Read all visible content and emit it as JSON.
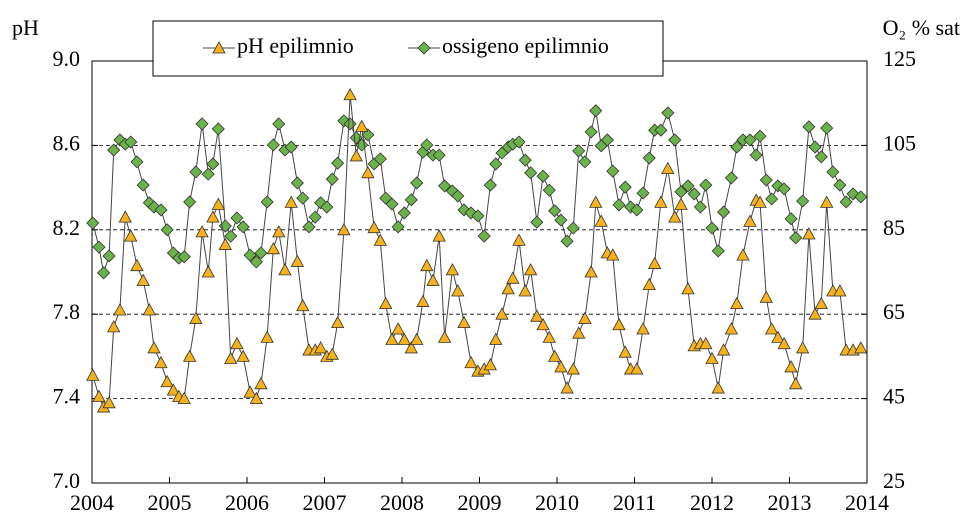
{
  "chart_data": {
    "type": "line",
    "y_label": "pH",
    "y2_label": "O₂ % sat",
    "x": [
      2004.01,
      2004.09,
      2004.15,
      2004.22,
      2004.28,
      2004.36,
      2004.43,
      2004.5,
      2004.58,
      2004.66,
      2004.74,
      2004.8,
      2004.89,
      2004.97,
      2005.05,
      2005.12,
      2005.19,
      2005.26,
      2005.34,
      2005.42,
      2005.5,
      2005.56,
      2005.63,
      2005.72,
      2005.79,
      2005.87,
      2005.95,
      2006.04,
      2006.12,
      2006.18,
      2006.26,
      2006.34,
      2006.41,
      2006.49,
      2006.57,
      2006.65,
      2006.72,
      2006.8,
      2006.88,
      2006.95,
      2007.03,
      2007.1,
      2007.17,
      2007.25,
      2007.33,
      2007.41,
      2007.48,
      2007.56,
      2007.64,
      2007.72,
      2007.79,
      2007.87,
      2007.95,
      2008.03,
      2008.12,
      2008.19,
      2008.27,
      2008.32,
      2008.4,
      2008.48,
      2008.55,
      2008.65,
      2008.72,
      2008.8,
      2008.89,
      2008.98,
      2009.06,
      2009.14,
      2009.21,
      2009.29,
      2009.37,
      2009.43,
      2009.51,
      2009.59,
      2009.66,
      2009.74,
      2009.82,
      2009.9,
      2009.97,
      2010.05,
      2010.13,
      2010.21,
      2010.28,
      2010.36,
      2010.44,
      2010.5,
      2010.57,
      2010.65,
      2010.72,
      2010.8,
      2010.88,
      2010.95,
      2011.03,
      2011.11,
      2011.19,
      2011.26,
      2011.34,
      2011.43,
      2011.52,
      2011.6,
      2011.69,
      2011.77,
      2011.85,
      2011.92,
      2012.0,
      2012.08,
      2012.15,
      2012.25,
      2012.32,
      2012.4,
      2012.49,
      2012.57,
      2012.62,
      2012.7,
      2012.77,
      2012.85,
      2012.93,
      2013.02,
      2013.08,
      2013.17,
      2013.25,
      2013.33,
      2013.41,
      2013.48,
      2013.56,
      2013.65,
      2013.73,
      2013.82,
      2013.92
    ],
    "series": [
      {
        "name": "pH epilimnio",
        "color": "#f5b21c",
        "marker": "triangle",
        "values": [
          7.51,
          7.41,
          7.36,
          7.38,
          7.74,
          7.82,
          8.26,
          8.17,
          8.03,
          7.96,
          7.82,
          7.64,
          7.57,
          7.48,
          7.44,
          7.41,
          7.4,
          7.6,
          7.78,
          8.19,
          8.0,
          8.26,
          8.32,
          8.13,
          7.59,
          7.66,
          7.6,
          7.43,
          7.4,
          7.47,
          7.69,
          8.11,
          8.19,
          8.01,
          8.33,
          8.05,
          7.84,
          7.63,
          7.63,
          7.64,
          7.6,
          7.61,
          7.76,
          8.2,
          8.84,
          8.55,
          8.69,
          8.47,
          8.21,
          8.15,
          7.85,
          7.68,
          7.73,
          7.68,
          7.64,
          7.68,
          7.86,
          8.03,
          7.96,
          8.17,
          7.69,
          8.01,
          7.91,
          7.76,
          7.57,
          7.53,
          7.54,
          7.56,
          7.68,
          7.8,
          7.92,
          7.97,
          8.15,
          7.91,
          8.01,
          7.79,
          7.75,
          7.69,
          7.6,
          7.55,
          7.45,
          7.54,
          7.71,
          7.78,
          8.0,
          8.33,
          8.24,
          8.09,
          8.08,
          7.75,
          7.62,
          7.54,
          7.54,
          7.73,
          7.94,
          8.04,
          8.33,
          8.49,
          8.26,
          8.32,
          7.92,
          7.65,
          7.66,
          7.66,
          7.59,
          7.45,
          7.63,
          7.73,
          7.85,
          8.08,
          8.24,
          8.34,
          8.33,
          7.88,
          7.73,
          7.69,
          7.66,
          7.55,
          7.47,
          7.64,
          8.18,
          7.8,
          7.85,
          8.33,
          7.91,
          7.91,
          7.63,
          7.63,
          7.64
        ]
      },
      {
        "name": "ossigeno epilimnio",
        "color": "#6bb24a",
        "marker": "diamond",
        "axis": "y2",
        "values": [
          86.6,
          80.9,
          74.8,
          78.8,
          103.9,
          106.3,
          105.3,
          105.8,
          101.1,
          95.6,
          91.4,
          90.4,
          89.7,
          85.0,
          79.5,
          78.3,
          78.6,
          91.6,
          98.7,
          110.1,
          98.2,
          100.6,
          108.9,
          85.9,
          83.5,
          87.8,
          85.7,
          79.0,
          77.4,
          79.5,
          91.6,
          105.1,
          110.1,
          103.9,
          104.6,
          96.1,
          92.5,
          85.7,
          88.0,
          91.4,
          90.4,
          97.0,
          100.8,
          110.8,
          110.1,
          106.8,
          105.1,
          107.5,
          100.6,
          101.8,
          92.5,
          91.1,
          85.7,
          89.0,
          92.1,
          96.1,
          103.4,
          105.1,
          102.7,
          102.7,
          95.4,
          94.2,
          93.0,
          89.7,
          89.0,
          88.3,
          83.5,
          95.6,
          100.6,
          103.2,
          104.6,
          105.3,
          105.8,
          101.5,
          98.5,
          86.8,
          97.7,
          94.4,
          89.5,
          87.3,
          82.3,
          85.4,
          103.7,
          101.1,
          108.2,
          113.2,
          104.9,
          106.3,
          98.9,
          90.9,
          95.1,
          90.4,
          89.7,
          93.7,
          102.0,
          108.6,
          108.6,
          112.7,
          106.3,
          94.0,
          95.4,
          93.5,
          90.4,
          95.6,
          85.4,
          80.0,
          89.2,
          97.3,
          104.6,
          106.3,
          106.3,
          102.7,
          107.2,
          96.8,
          92.3,
          95.4,
          94.7,
          87.6,
          83.1,
          91.8,
          109.4,
          104.6,
          102.3,
          109.1,
          98.7,
          95.6,
          91.6,
          93.5,
          92.8
        ]
      }
    ],
    "xlim": [
      2004,
      2014
    ],
    "xticks": [
      2004,
      2005,
      2006,
      2007,
      2008,
      2009,
      2010,
      2011,
      2012,
      2013,
      2014
    ],
    "ylim": [
      7,
      9
    ],
    "yticks": [
      {
        "value": 7,
        "label": "7.0"
      },
      7.4,
      7.8,
      8.2,
      8.6,
      {
        "value": 9,
        "label": "9.0"
      }
    ],
    "y2lim": [
      25,
      125
    ],
    "y2ticks": [
      25,
      45,
      65,
      85,
      105,
      125
    ],
    "grid": true,
    "legend": "top"
  }
}
